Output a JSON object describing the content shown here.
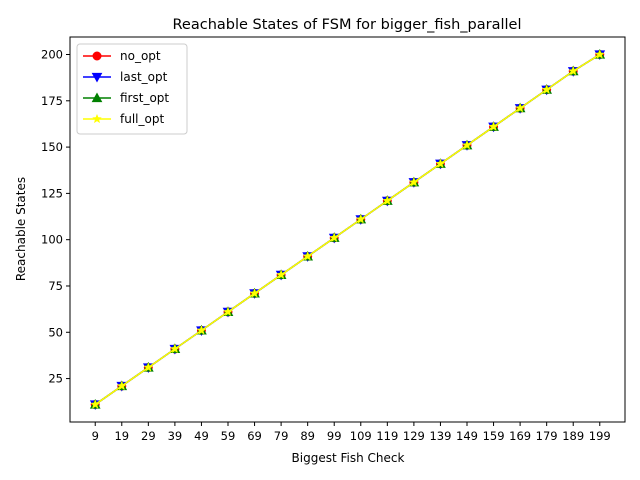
{
  "chart_data": {
    "type": "line",
    "title": "Reachable States of FSM for bigger_fish_parallel",
    "xlabel": "Biggest Fish Check",
    "ylabel": "Reachable States",
    "x": [
      9,
      19,
      29,
      39,
      49,
      59,
      69,
      79,
      89,
      99,
      109,
      119,
      129,
      139,
      149,
      159,
      169,
      179,
      189,
      199
    ],
    "x_tick_labels": [
      "9",
      "19",
      "29",
      "39",
      "49",
      "59",
      "69",
      "79",
      "89",
      "99",
      "109",
      "119",
      "129",
      "139",
      "149",
      "159",
      "169",
      "179",
      "189",
      "199"
    ],
    "ylim": [
      1.55,
      209.45
    ],
    "y_ticks": [
      25,
      50,
      75,
      100,
      125,
      150,
      175,
      200
    ],
    "y_tick_labels": [
      "25",
      "50",
      "75",
      "100",
      "125",
      "150",
      "175",
      "200"
    ],
    "grid": false,
    "legend_position": "top-left",
    "series": [
      {
        "name": "no_opt",
        "color": "#ff0000",
        "marker": "circle",
        "values": [
          11,
          21,
          31,
          41,
          51,
          61,
          71,
          81,
          91,
          101,
          111,
          121,
          131,
          141,
          151,
          161,
          171,
          181,
          191,
          200
        ]
      },
      {
        "name": "last_opt",
        "color": "#0000ff",
        "marker": "triangle-down",
        "values": [
          11,
          21,
          31,
          41,
          51,
          61,
          71,
          81,
          91,
          101,
          111,
          121,
          131,
          141,
          151,
          161,
          171,
          181,
          191,
          200
        ]
      },
      {
        "name": "first_opt",
        "color": "#008000",
        "marker": "triangle-up",
        "values": [
          11,
          21,
          31,
          41,
          51,
          61,
          71,
          81,
          91,
          101,
          111,
          121,
          131,
          141,
          151,
          161,
          171,
          181,
          191,
          200
        ]
      },
      {
        "name": "full_opt",
        "color": "#ffff00",
        "marker": "star",
        "values": [
          11,
          21,
          31,
          41,
          51,
          61,
          71,
          81,
          91,
          101,
          111,
          121,
          131,
          141,
          151,
          161,
          171,
          181,
          191,
          200
        ]
      }
    ]
  }
}
